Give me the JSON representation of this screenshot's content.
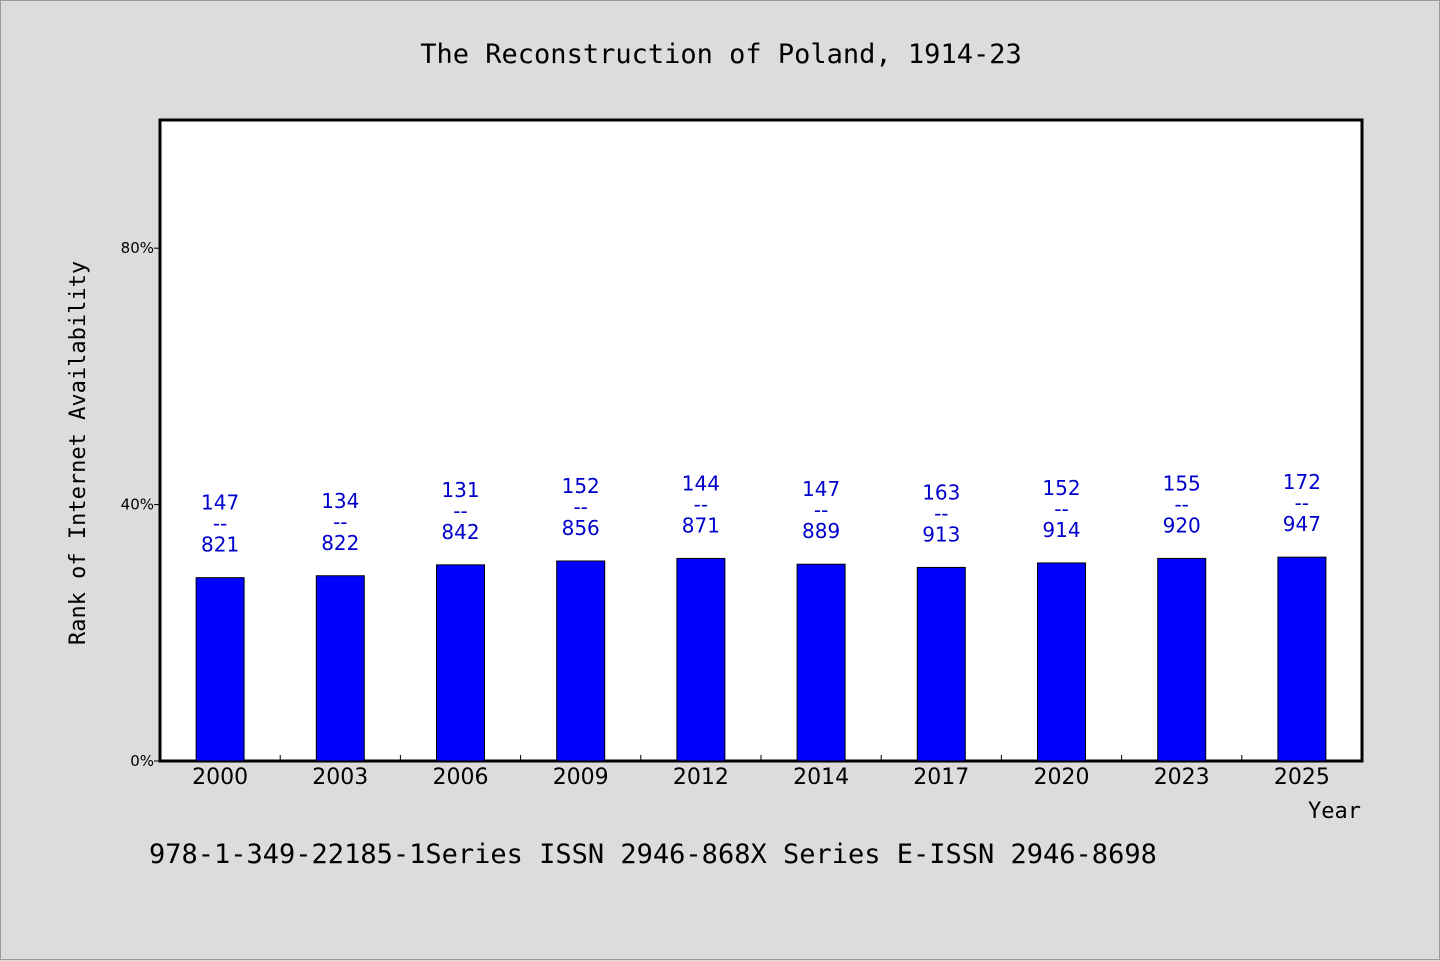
{
  "chart_data": {
    "type": "bar",
    "title": "The Reconstruction of Poland, 1914-23",
    "xlabel": "Year",
    "ylabel": "Rank of Internet Availability",
    "categories": [
      "2000",
      "2003",
      "2006",
      "2009",
      "2012",
      "2014",
      "2017",
      "2020",
      "2023",
      "2025"
    ],
    "values": [
      28.6,
      28.9,
      30.6,
      31.2,
      31.6,
      30.7,
      30.2,
      30.9,
      31.6,
      31.8
    ],
    "data_labels": [
      [
        "147",
        "--",
        "821"
      ],
      [
        "134",
        "--",
        "822"
      ],
      [
        "131",
        "--",
        "842"
      ],
      [
        "152",
        "--",
        "856"
      ],
      [
        "144",
        "--",
        "871"
      ],
      [
        "147",
        "--",
        "889"
      ],
      [
        "163",
        "--",
        "913"
      ],
      [
        "152",
        "--",
        "914"
      ],
      [
        "155",
        "--",
        "920"
      ],
      [
        "172",
        "--",
        "947"
      ]
    ],
    "ylim": [
      0,
      100
    ],
    "yticks": [
      0,
      40,
      80
    ],
    "ytick_labels": [
      "0%",
      "40%",
      "80%"
    ],
    "grid": false,
    "bar_color": "#0000ff",
    "label_color": "#0000cc",
    "background": "#dcdcdc",
    "plot_background": "#ffffff"
  },
  "footer": {
    "text": "978-1-349-22185-1Series ISSN 2946-868X Series E-ISSN 2946-8698"
  }
}
